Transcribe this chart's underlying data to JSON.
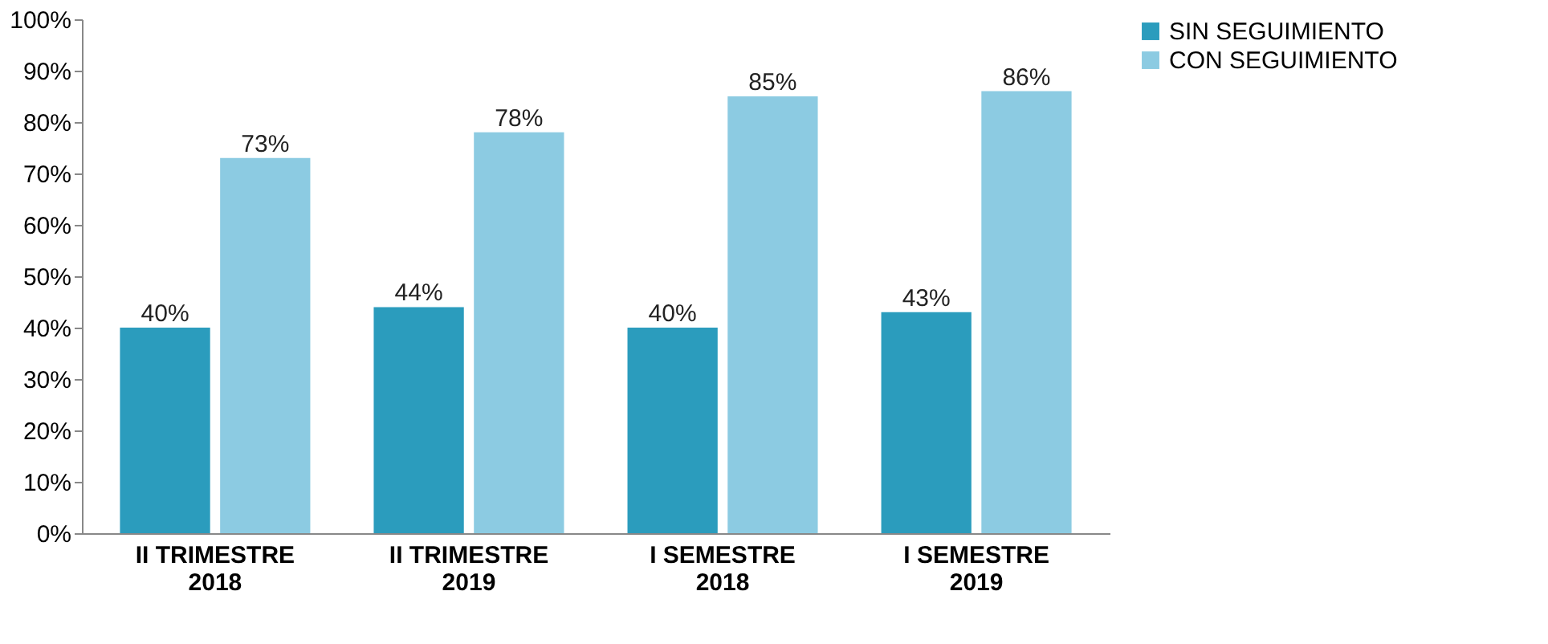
{
  "chart_data": {
    "type": "bar",
    "categories": [
      "II TRIMESTRE\n2018",
      "II TRIMESTRE\n2019",
      "I SEMESTRE\n2018",
      "I SEMESTRE\n2019"
    ],
    "series": [
      {
        "name": "SIN SEGUIMIENTO",
        "color": "#2b9cbd",
        "values": [
          40,
          44,
          40,
          43
        ],
        "value_labels": [
          "40%",
          "44%",
          "40%",
          "43%"
        ]
      },
      {
        "name": "CON SEGUIMIENTO",
        "color": "#8ccbe2",
        "values": [
          73,
          78,
          85,
          86
        ],
        "value_labels": [
          "73%",
          "78%",
          "85%",
          "86%"
        ]
      }
    ],
    "ylim": [
      0,
      100
    ],
    "yticks": [
      {
        "value": 0,
        "label": "0%"
      },
      {
        "value": 10,
        "label": "10%"
      },
      {
        "value": 20,
        "label": "20%"
      },
      {
        "value": 30,
        "label": "30%"
      },
      {
        "value": 40,
        "label": "40%"
      },
      {
        "value": 50,
        "label": "50%"
      },
      {
        "value": 60,
        "label": "60%"
      },
      {
        "value": 70,
        "label": "70%"
      },
      {
        "value": 80,
        "label": "80%"
      },
      {
        "value": 90,
        "label": "90%"
      },
      {
        "value": 100,
        "label": "100%"
      }
    ],
    "grid": false,
    "legend": "right"
  }
}
